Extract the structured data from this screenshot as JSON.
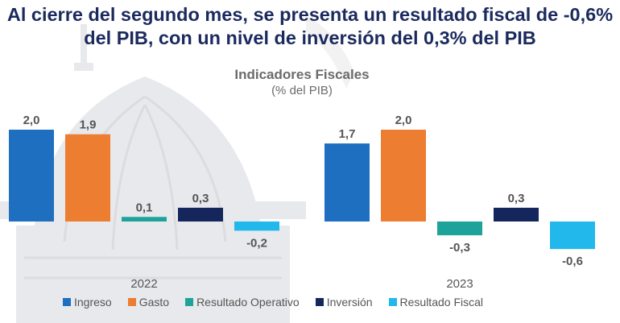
{
  "header": {
    "line1": "Al cierre del segundo mes, se presenta un resultado fiscal de -0,6%",
    "line2": "del PIB, con un nivel de inversión del 0,3% del PIB"
  },
  "chart_data": {
    "type": "bar",
    "title": "Indicadores Fiscales",
    "subtitle": "(% del PIB)",
    "categories": [
      "2022",
      "2023"
    ],
    "series": [
      {
        "name": "Ingreso",
        "color": "#1f6fc0",
        "values": [
          2.0,
          1.7
        ],
        "labels": [
          "2,0",
          "1,7"
        ]
      },
      {
        "name": "Gasto",
        "color": "#ed7d31",
        "values": [
          1.9,
          2.0
        ],
        "labels": [
          "1,9",
          "2,0"
        ]
      },
      {
        "name": "Resultado Operativo",
        "color": "#1ea39a",
        "values": [
          0.1,
          -0.3
        ],
        "labels": [
          "0,1",
          "-0,3"
        ]
      },
      {
        "name": "Inversión",
        "color": "#14265c",
        "values": [
          0.3,
          0.3
        ],
        "labels": [
          "0,3",
          "0,3"
        ]
      },
      {
        "name": "Resultado Fiscal",
        "color": "#22b8eb",
        "values": [
          -0.2,
          -0.6
        ],
        "labels": [
          "-0,2",
          "-0,6"
        ]
      }
    ],
    "legend_position": "bottom-left",
    "grid": false
  }
}
